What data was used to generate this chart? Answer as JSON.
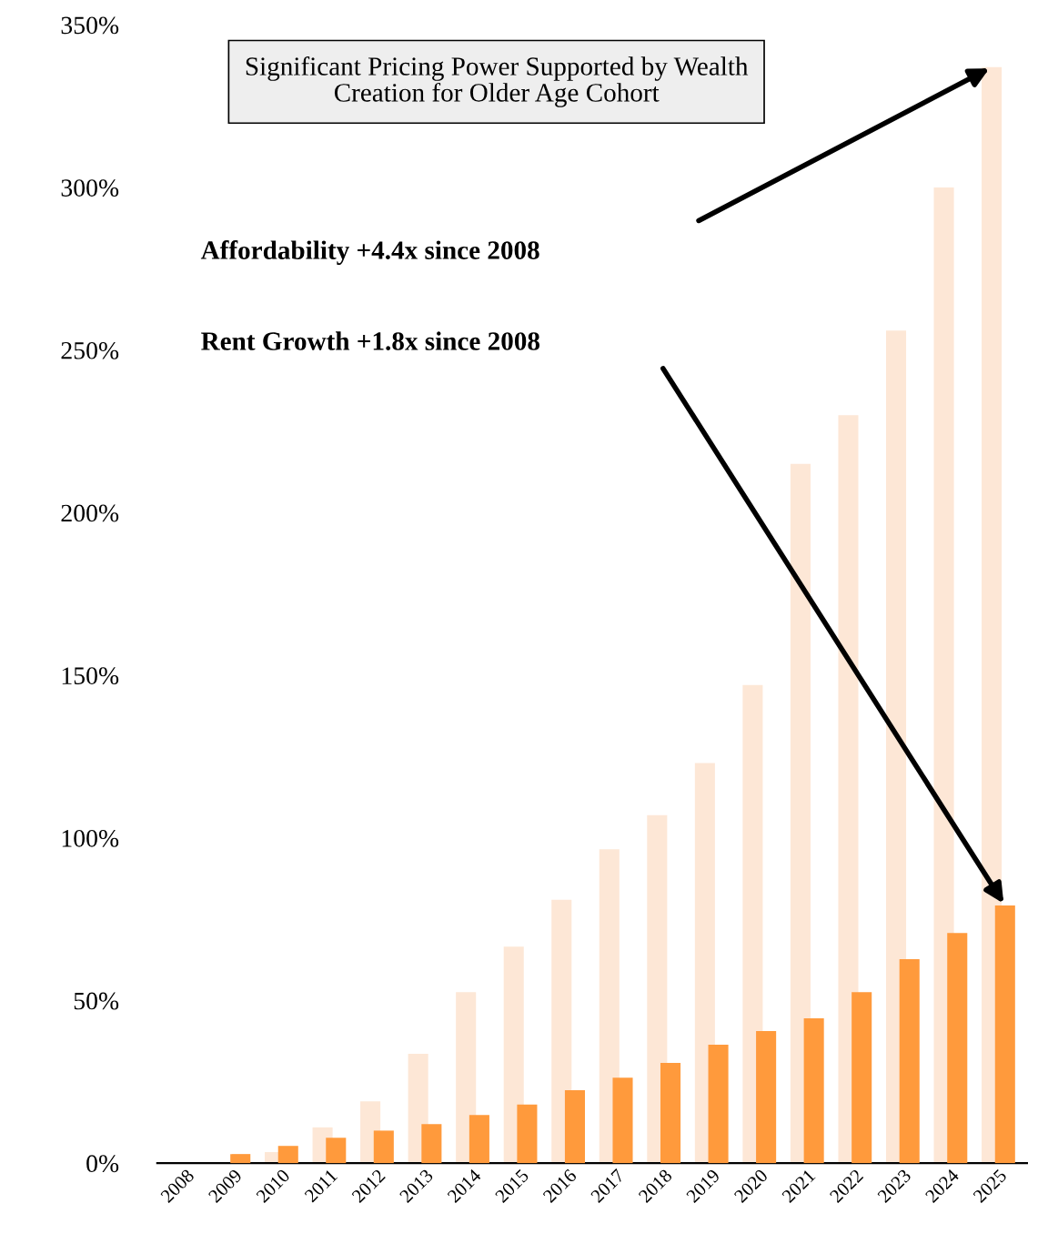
{
  "chart_data": {
    "type": "bar",
    "title": "Significant Pricing Power Supported by Wealth Creation for Older Age Cohort",
    "categories": [
      "2008",
      "2009",
      "2010",
      "2011",
      "2012",
      "2013",
      "2014",
      "2015",
      "2016",
      "2017",
      "2018",
      "2019",
      "2020",
      "2021",
      "2022",
      "2023",
      "2024",
      "2025"
    ],
    "series": [
      {
        "color": "#fde7d6",
        "values": [
          0,
          0,
          3.4,
          11,
          19,
          33.6,
          52.6,
          66.6,
          81,
          96.5,
          107,
          123,
          147,
          215,
          230,
          256,
          300,
          337
        ]
      },
      {
        "color": "#ff9a3c",
        "values": [
          0,
          2.8,
          5.3,
          7.8,
          10,
          12,
          14.8,
          18,
          22.4,
          26.3,
          30.8,
          36.4,
          40.6,
          44.5,
          52.6,
          62.7,
          70.8,
          79.2
        ]
      }
    ],
    "ylim": [
      0,
      350
    ],
    "yticks": [
      {
        "value": 0,
        "label": "0%"
      },
      {
        "value": 50,
        "label": "50%"
      },
      {
        "value": 100,
        "label": "100%"
      },
      {
        "value": 150,
        "label": "150%"
      },
      {
        "value": 200,
        "label": "200%"
      },
      {
        "value": 250,
        "label": "250%"
      },
      {
        "value": 300,
        "label": "300%"
      },
      {
        "value": 350,
        "label": "350%"
      }
    ],
    "grid": false,
    "legend": false,
    "annotations": [
      "Affordability +4.4x since 2008",
      "Rent Growth +1.8x since 2008"
    ]
  }
}
